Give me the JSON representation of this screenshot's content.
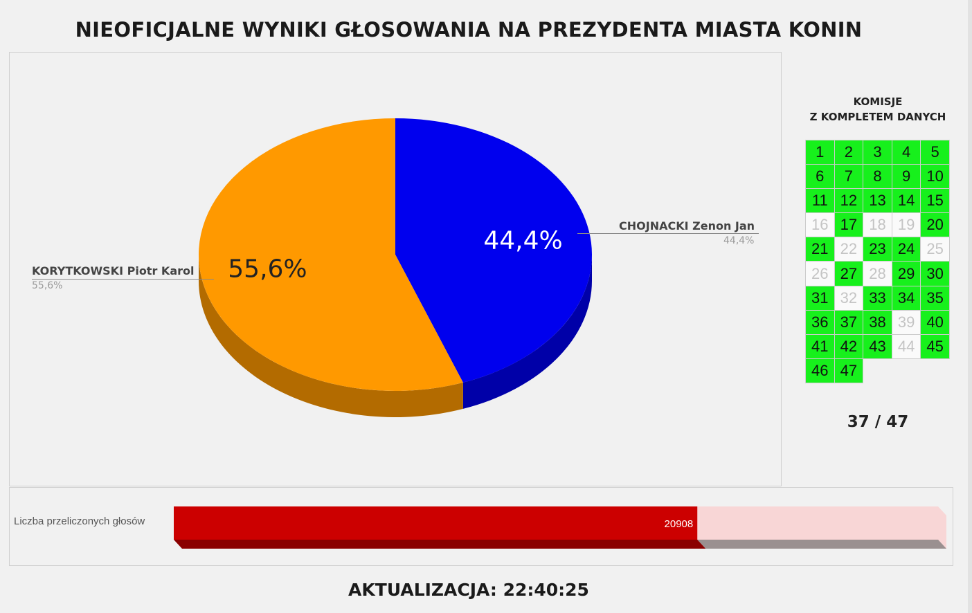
{
  "title": "NIEOFICJALNE WYNIKI GŁOSOWANIA NA PREZYDENTA MIASTA KONIN",
  "chart_data": {
    "type": "pie",
    "title": "NIEOFICJALNE WYNIKI GŁOSOWANIA NA PREZYDENTA MIASTA KONIN",
    "slices": [
      {
        "label": "CHOJNACKI Zenon Jan",
        "value": 44.4,
        "display": "44,4%",
        "color": "#0000ee",
        "side_color": "#0000a8"
      },
      {
        "label": "KORYTKOWSKI Piotr Karol",
        "value": 55.6,
        "display": "55,6%",
        "color": "#ff9900",
        "side_color": "#b36b00"
      }
    ]
  },
  "commissions": {
    "title": "KOMISJE\nZ KOMPLETEM DANYCH",
    "total": 47,
    "pending": [
      16,
      18,
      19,
      22,
      25,
      26,
      28,
      32,
      39,
      44
    ],
    "complete_color": "#17f01c",
    "count_text": "37 / 47"
  },
  "votes_bar": {
    "label": "Liczba przeliczonych głosów",
    "value": 20908,
    "value_text": "20908",
    "fraction": 0.685,
    "fill_color": "#cc0000",
    "track_color": "#f8d6d6"
  },
  "update": {
    "text": "AKTUALIZACJA: 22:40:25"
  }
}
